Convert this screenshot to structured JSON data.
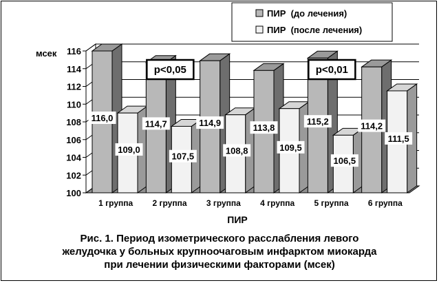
{
  "chart_data": {
    "type": "bar",
    "ylabel": "мсек",
    "xlabel": "ПИР",
    "ylim": [
      100,
      116
    ],
    "yticks": [
      "100",
      "102",
      "104",
      "106",
      "108",
      "110",
      "112",
      "114",
      "116"
    ],
    "categories": [
      "1 группа",
      "2 группа",
      "3 группа",
      "4 группа",
      "5 группа",
      "6 группа"
    ],
    "series": [
      {
        "name": "ПИР  (до лечения)",
        "values": [
          116.0,
          114.7,
          114.9,
          113.8,
          115.2,
          114.2
        ],
        "labels": [
          "116,0",
          "114,7",
          "114,9",
          "113,8",
          "115,2",
          "114,2"
        ],
        "color": "#b8b8b8"
      },
      {
        "name": "ПИР  (после лечения)",
        "values": [
          109.0,
          107.5,
          108.8,
          109.5,
          106.5,
          111.5
        ],
        "labels": [
          "109,0",
          "107,5",
          "108,8",
          "109,5",
          "106,5",
          "111,5"
        ],
        "color": "#f2f2f2"
      }
    ],
    "annotations": [
      {
        "text": "p<0,05",
        "group": 1
      },
      {
        "text": "p<0,01",
        "group": 4
      }
    ],
    "legend_position": "top-right",
    "grid": true
  },
  "caption": [
    "Рис. 1. Период изометрического расслабления левого",
    "желудочка у больных крупноочаговым инфарктом миокарда",
    "при лечении физическими факторами (мсек)"
  ]
}
